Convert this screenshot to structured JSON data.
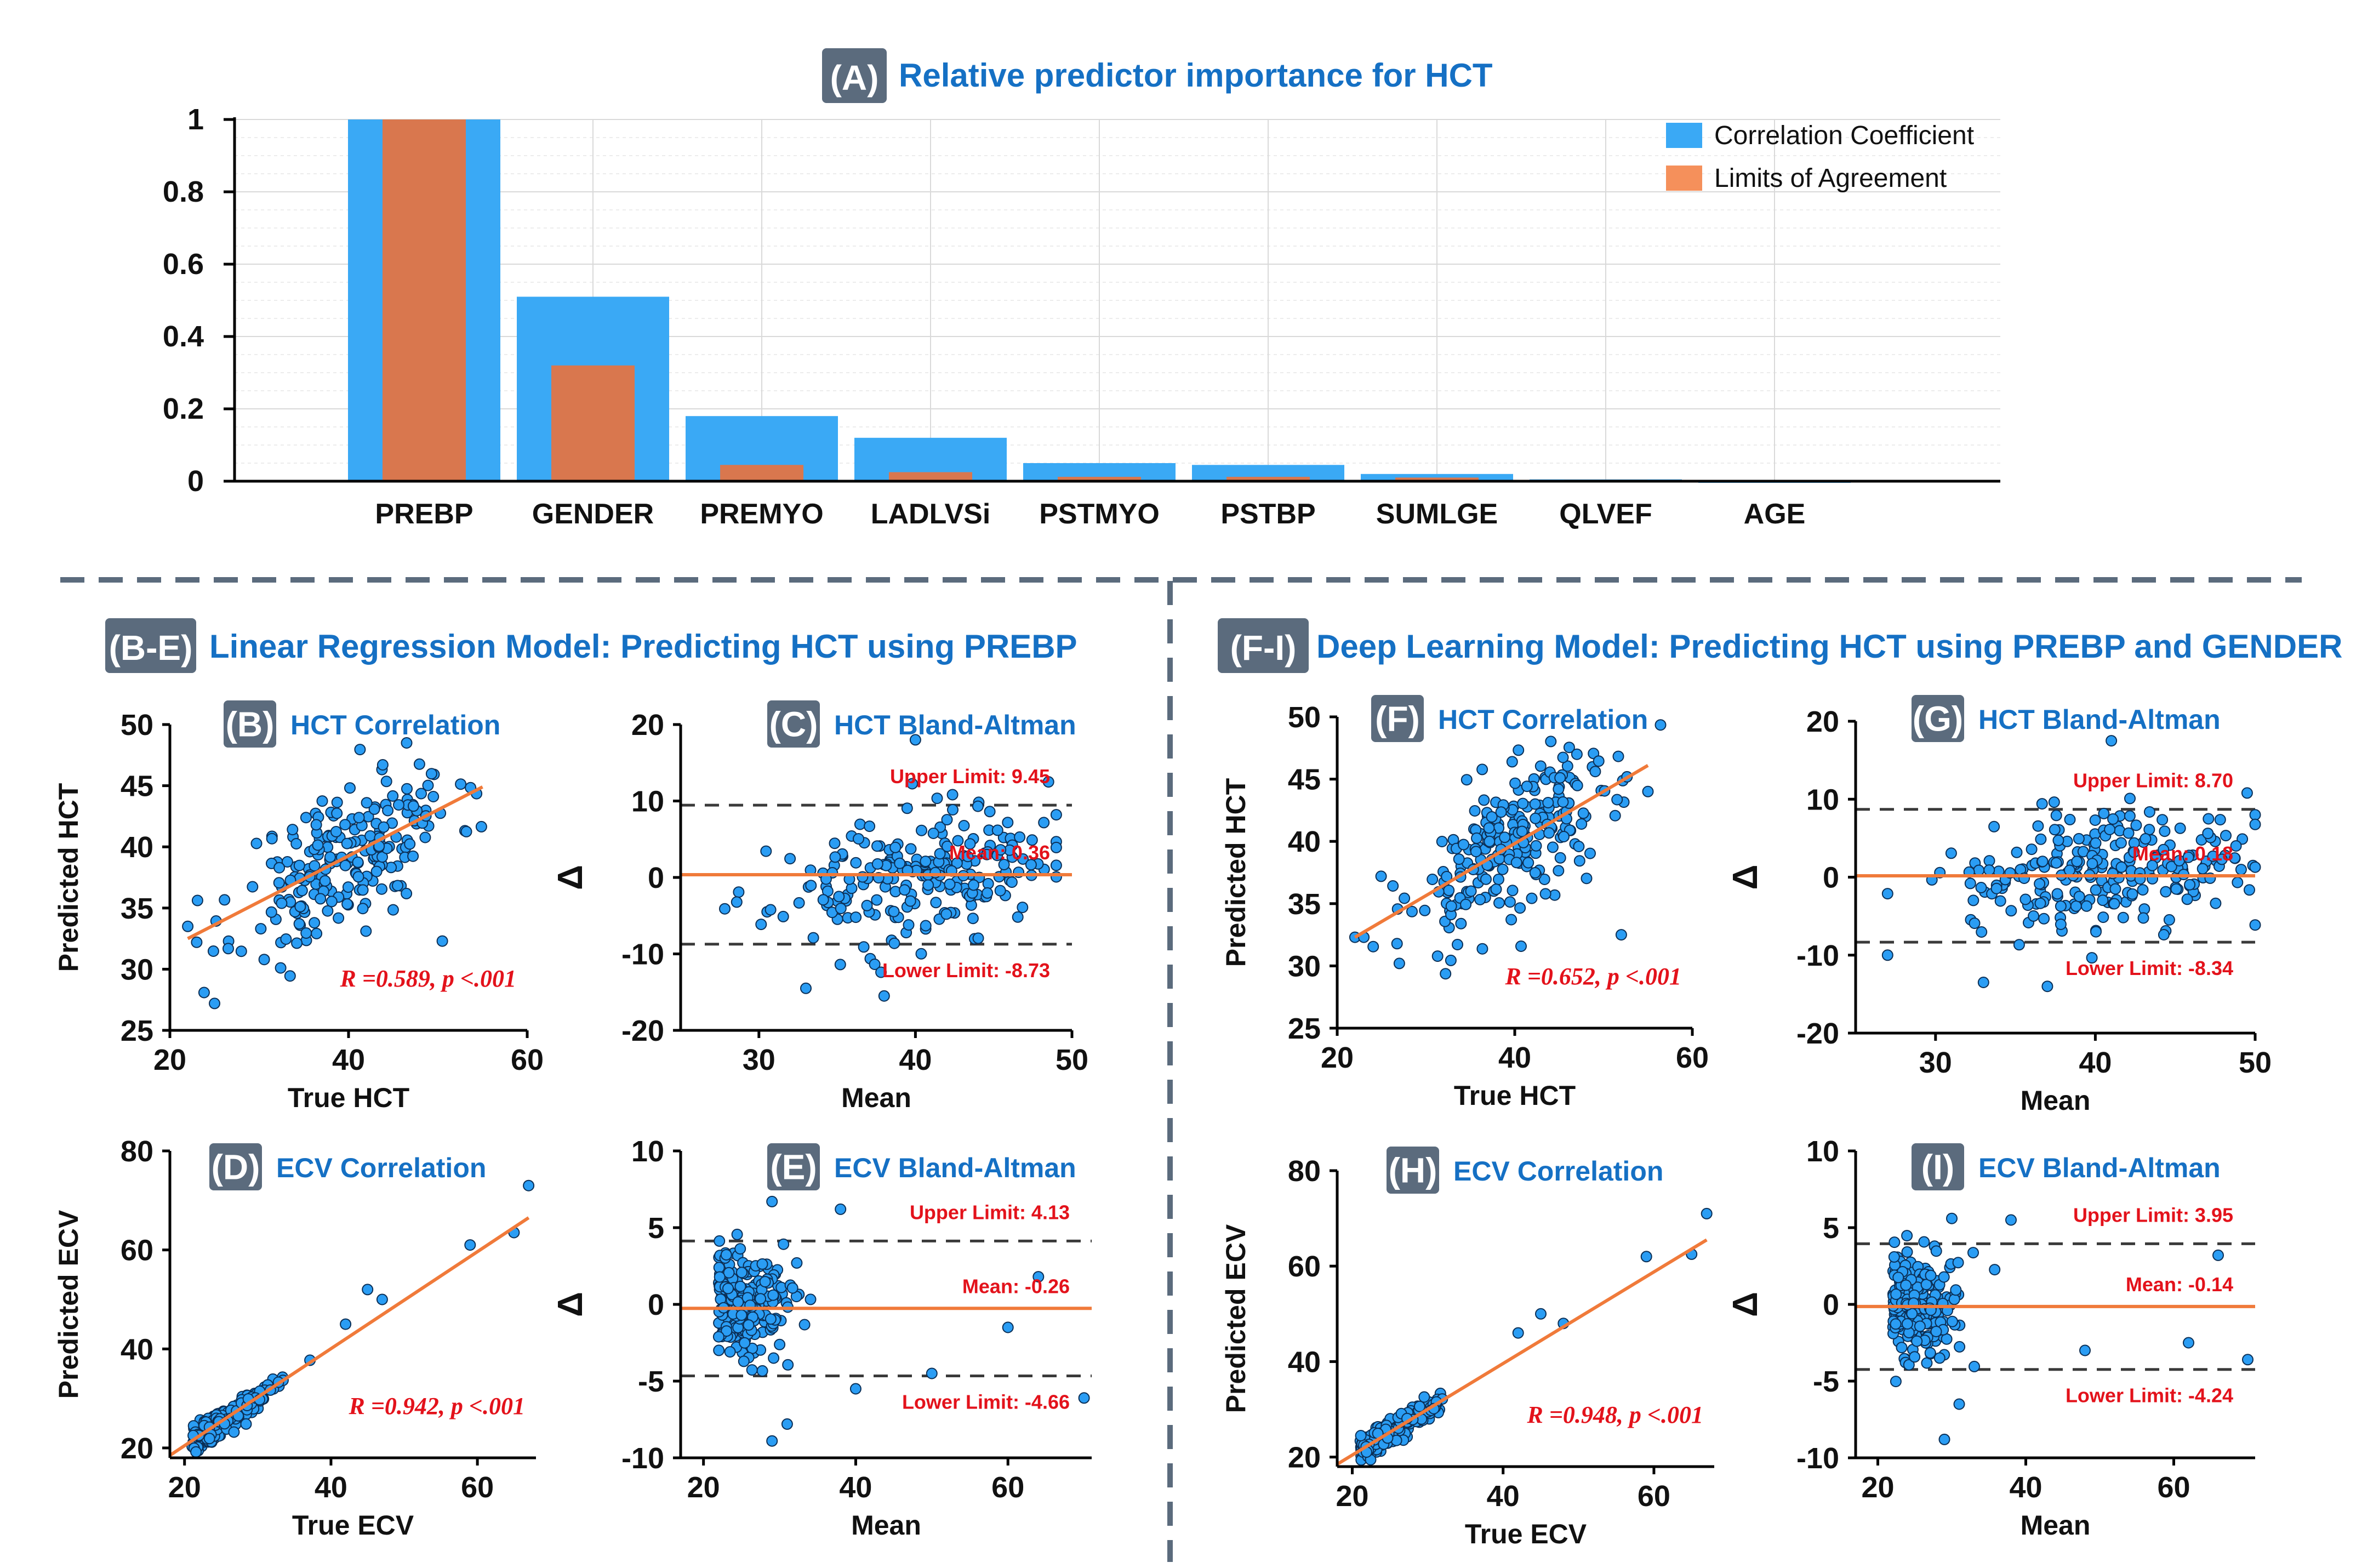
{
  "panelA": {
    "tag": "(A)",
    "title": "Relative predictor importance for HCT",
    "legend": [
      "Correlation Coefficient",
      "Limits of Agreement"
    ],
    "colors": {
      "corr": "#3aa9f5",
      "loa": "#d9774e"
    },
    "chart_data": {
      "type": "bar",
      "title": "Relative predictor importance for HCT",
      "categories": [
        "PREBP",
        "GENDER",
        "PREMYO",
        "LADLVSi",
        "PSTMYO",
        "PSTBP",
        "SUMLGE",
        "QLVEF",
        "AGE"
      ],
      "series": [
        {
          "name": "Correlation Coefficient",
          "values": [
            1.0,
            0.51,
            0.18,
            0.12,
            0.05,
            0.045,
            0.02,
            0.005,
            0.0
          ]
        },
        {
          "name": "Limits of Agreement",
          "values": [
            1.0,
            0.32,
            0.045,
            0.025,
            0.012,
            0.012,
            0.01,
            0.004,
            0.003
          ]
        }
      ],
      "ylim": [
        0,
        1
      ],
      "yticks": [
        "0",
        "0.2",
        "0.4",
        "0.6",
        "0.8",
        "1"
      ],
      "legend_position": "top-right",
      "grid": true
    }
  },
  "sectionLeft": {
    "tag": "(B-E)",
    "title": "Linear Regression Model: Predicting HCT using PREBP"
  },
  "sectionRight": {
    "tag": "(F-I)",
    "title": "Deep Learning Model: Predicting HCT using PREBP and GENDER"
  },
  "panels": [
    {
      "id": "B",
      "tag": "(B)",
      "subtitle": "HCT Correlation",
      "kind": "corr",
      "xlabel": "True HCT",
      "ylabel": "Predicted HCT",
      "xticks": [
        "20",
        "40",
        "60"
      ],
      "yticks": [
        "25",
        "30",
        "35",
        "40",
        "45",
        "50"
      ],
      "stat": "R =0.589, p <.001",
      "chart_data": {
        "type": "scatter",
        "xlim": [
          20,
          60
        ],
        "ylim": [
          25,
          50
        ],
        "fit": {
          "x": [
            22,
            55
          ],
          "y": [
            32.5,
            44.9
          ]
        },
        "cluster": {
          "seed": 11,
          "n": 220,
          "xmean": 40,
          "xsd": 6,
          "slope": 0.375,
          "intercept": 24.3,
          "noise": 3.0,
          "extra": [
            [
              25,
              27.2
            ],
            [
              46.5,
              48.5
            ],
            [
              50.5,
              32.3
            ],
            [
              22,
              33.5
            ],
            [
              23,
              32.2
            ]
          ]
        }
      }
    },
    {
      "id": "C",
      "tag": "(C)",
      "subtitle": "HCT Bland-Altman",
      "kind": "ba",
      "xlabel": "Mean",
      "ylabel": "Δ",
      "xticks": [
        "30",
        "40",
        "50"
      ],
      "yticks": [
        "-20",
        "-10",
        "0",
        "10",
        "20"
      ],
      "chart_data": {
        "type": "scatter",
        "xlim": [
          25,
          50
        ],
        "ylim": [
          -20,
          20
        ],
        "mean": 0.36,
        "upper": 9.45,
        "lower": -8.73,
        "labels": {
          "upper": "Upper Limit: 9.45",
          "mean": "Mean: 0.36",
          "lower": "Lower Limit: -8.73"
        },
        "cluster": {
          "seed": 23,
          "n": 220,
          "xmean": 40,
          "xsd": 4.5,
          "slope": 0.25,
          "intercept": -10,
          "noise": 4.0,
          "xmin": 26,
          "xmax": 49,
          "extra": [
            [
              40,
              18
            ],
            [
              48.5,
              12.5
            ],
            [
              38,
              -15.5
            ],
            [
              33,
              -14.5
            ]
          ]
        }
      }
    },
    {
      "id": "D",
      "tag": "(D)",
      "subtitle": "ECV Correlation",
      "kind": "corr",
      "xlabel": "True ECV",
      "ylabel": "Predicted ECV",
      "xticks": [
        "20",
        "40",
        "60"
      ],
      "yticks": [
        "20",
        "40",
        "60",
        "80"
      ],
      "stat": "R =0.942, p <.001",
      "chart_data": {
        "type": "scatter",
        "xlim": [
          18,
          68
        ],
        "ylim": [
          18,
          80
        ],
        "fit": {
          "x": [
            18,
            67
          ],
          "y": [
            18.5,
            66.5
          ]
        },
        "cluster": {
          "seed": 37,
          "n": 230,
          "xmean": 26,
          "xsd": 4,
          "slope": 0.98,
          "intercept": 0.8,
          "noise": 1.3,
          "xmin": 18,
          "xmax": 48,
          "extra": [
            [
              59,
              61
            ],
            [
              65,
              63.5
            ],
            [
              67,
              73
            ],
            [
              45,
              52
            ],
            [
              42,
              45
            ],
            [
              47,
              50
            ]
          ]
        }
      }
    },
    {
      "id": "E",
      "tag": "(E)",
      "subtitle": "ECV Bland-Altman",
      "kind": "ba",
      "xlabel": "Mean",
      "ylabel": "Δ",
      "xticks": [
        "20",
        "40",
        "60"
      ],
      "yticks": [
        "-10",
        "-5",
        "0",
        "5",
        "10"
      ],
      "chart_data": {
        "type": "scatter",
        "xlim": [
          17,
          71
        ],
        "ylim": [
          -10,
          10
        ],
        "mean": -0.26,
        "upper": 4.13,
        "lower": -4.66,
        "labels": {
          "upper": "Upper Limit: 4.13",
          "mean": "Mean: -0.26",
          "lower": "Lower Limit: -4.66"
        },
        "cluster": {
          "seed": 41,
          "n": 260,
          "xmean": 27,
          "xsd": 3.5,
          "slope": 0.0,
          "intercept": 0.0,
          "noise": 1.7,
          "xmin": 19,
          "xmax": 45,
          "extra": [
            [
              29,
              6.7
            ],
            [
              31,
              -7.8
            ],
            [
              29,
              -8.9
            ],
            [
              64,
              1.8
            ],
            [
              70,
              -6.1
            ],
            [
              60,
              -1.5
            ],
            [
              50,
              -4.5
            ],
            [
              40,
              -5.5
            ],
            [
              38,
              6.2
            ]
          ]
        }
      }
    },
    {
      "id": "F",
      "tag": "(F)",
      "subtitle": "HCT Correlation",
      "kind": "corr",
      "xlabel": "True HCT",
      "ylabel": "Predicted HCT",
      "xticks": [
        "20",
        "40",
        "60"
      ],
      "yticks": [
        "25",
        "30",
        "35",
        "40",
        "45",
        "50"
      ],
      "stat": "R =0.652, p <.001",
      "chart_data": {
        "type": "scatter",
        "xlim": [
          20,
          60
        ],
        "ylim": [
          25,
          50
        ],
        "fit": {
          "x": [
            22,
            55
          ],
          "y": [
            32.3,
            46.1
          ]
        },
        "cluster": {
          "seed": 53,
          "n": 240,
          "xmean": 40,
          "xsd": 6,
          "slope": 0.42,
          "intercept": 23.0,
          "noise": 3.0,
          "extra": [
            [
              22,
              32.3
            ],
            [
              23,
              32.3
            ],
            [
              27,
              30.2
            ],
            [
              52,
              32.5
            ],
            [
              55,
              44
            ],
            [
              47,
              47
            ]
          ]
        }
      }
    },
    {
      "id": "G",
      "tag": "(G)",
      "subtitle": "HCT Bland-Altman",
      "kind": "ba",
      "xlabel": "Mean",
      "ylabel": "Δ",
      "xticks": [
        "30",
        "40",
        "50"
      ],
      "yticks": [
        "-20",
        "-10",
        "0",
        "10",
        "20"
      ],
      "chart_data": {
        "type": "scatter",
        "xlim": [
          25,
          50
        ],
        "ylim": [
          -20,
          20
        ],
        "mean": 0.18,
        "upper": 8.7,
        "lower": -8.34,
        "labels": {
          "upper": "Upper Limit: 8.70",
          "mean": "Mean: 0.18",
          "lower": "Lower Limit: -8.34"
        },
        "cluster": {
          "seed": 67,
          "n": 240,
          "xmean": 40,
          "xsd": 4.5,
          "slope": 0.2,
          "intercept": -8,
          "noise": 3.8,
          "xmin": 27,
          "xmax": 50,
          "extra": [
            [
              41,
              17.5
            ],
            [
              49.5,
              10.8
            ],
            [
              37,
              -14
            ],
            [
              27,
              -10
            ],
            [
              33,
              -13.5
            ]
          ]
        }
      }
    },
    {
      "id": "H",
      "tag": "(H)",
      "subtitle": "ECV Correlation",
      "kind": "corr",
      "xlabel": "True ECV",
      "ylabel": "Predicted ECV",
      "xticks": [
        "20",
        "40",
        "60"
      ],
      "yticks": [
        "20",
        "40",
        "60",
        "80"
      ],
      "stat": "R =0.948, p <.001",
      "chart_data": {
        "type": "scatter",
        "xlim": [
          18,
          68
        ],
        "ylim": [
          18,
          80
        ],
        "fit": {
          "x": [
            18,
            67
          ],
          "y": [
            18.5,
            65.5
          ]
        },
        "cluster": {
          "seed": 79,
          "n": 230,
          "xmean": 26,
          "xsd": 4,
          "slope": 0.97,
          "intercept": 1.0,
          "noise": 1.3,
          "xmin": 18,
          "xmax": 48,
          "extra": [
            [
              59,
              62
            ],
            [
              65,
              62.5
            ],
            [
              67,
              71
            ],
            [
              45,
              50
            ],
            [
              42,
              46
            ],
            [
              48,
              48
            ]
          ]
        }
      }
    },
    {
      "id": "I",
      "tag": "(I)",
      "subtitle": "ECV Bland-Altman",
      "kind": "ba",
      "xlabel": "Mean",
      "ylabel": "Δ",
      "xticks": [
        "20",
        "40",
        "60"
      ],
      "yticks": [
        "-10",
        "-5",
        "0",
        "5",
        "10"
      ],
      "chart_data": {
        "type": "scatter",
        "xlim": [
          17,
          71
        ],
        "ylim": [
          -10,
          10
        ],
        "mean": -0.14,
        "upper": 3.95,
        "lower": -4.24,
        "labels": {
          "upper": "Upper Limit: 3.95",
          "mean": "Mean: -0.14",
          "lower": "Lower Limit: -4.24"
        },
        "cluster": {
          "seed": 97,
          "n": 260,
          "xmean": 27,
          "xsd": 3.5,
          "slope": 0.0,
          "intercept": 0.0,
          "noise": 1.7,
          "xmin": 19,
          "xmax": 45,
          "extra": [
            [
              29,
              -8.8
            ],
            [
              31,
              -6.5
            ],
            [
              66,
              3.2
            ],
            [
              70,
              -3.6
            ],
            [
              62,
              -2.5
            ],
            [
              48,
              -3
            ],
            [
              38,
              5.5
            ],
            [
              30,
              5.6
            ]
          ]
        }
      }
    }
  ]
}
